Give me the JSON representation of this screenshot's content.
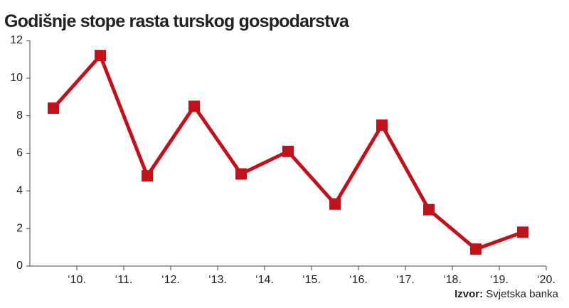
{
  "chart_data": {
    "type": "line",
    "title": "Godišnje stope rasta turskog gospodarstva",
    "categories": [
      null,
      null,
      null,
      null,
      null,
      null,
      null,
      null,
      null,
      null,
      null
    ],
    "xtick_labels": [
      "‘10.",
      "‘11.",
      "‘12.",
      "‘13.",
      "‘14.",
      "‘15.",
      "‘16.",
      "‘17.",
      "‘18.",
      "‘19.",
      "‘20."
    ],
    "values": [
      8.4,
      11.2,
      4.8,
      8.5,
      4.9,
      6.1,
      3.3,
      7.5,
      3.0,
      0.9,
      1.8
    ],
    "color": "#c1121c",
    "ylim": [
      0,
      12
    ],
    "yticks": [
      0,
      2,
      4,
      6,
      8,
      10,
      12
    ],
    "source_label": "Izvor:",
    "source": "Svjetska banka"
  }
}
